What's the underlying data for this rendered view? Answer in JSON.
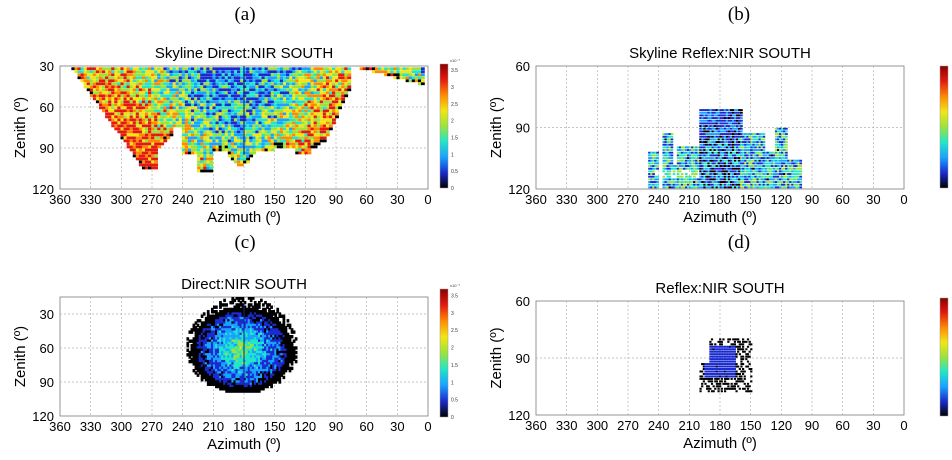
{
  "figure": {
    "panels": [
      "(a)",
      "(b)",
      "(c)",
      "(d)"
    ]
  },
  "colormap": {
    "name": "jet-with-black-low-end",
    "stops": [
      "#ffffff",
      "#000000",
      "#1a2bd0",
      "#18a3ff",
      "#21e6c9",
      "#9be33c",
      "#f1e615",
      "#ff8a00",
      "#e41a0f",
      "#8b0000"
    ],
    "a_ticks": [
      "x10⁻⁷",
      "3.5",
      "3",
      "2.5",
      "2",
      "1.5",
      "1",
      "0.5",
      "0"
    ],
    "c_ticks": [
      "x10⁻⁷",
      "3.5",
      "3",
      "2.5",
      "2",
      "1.5",
      "1",
      "0.5",
      "0"
    ]
  },
  "chart_data": [
    {
      "id": "a",
      "type": "heatmap",
      "title": "Skyline Direct:NIR SOUTH",
      "xlabel": "Azimuth (º)",
      "ylabel": "Zenith (º)",
      "xlim": [
        360,
        0
      ],
      "ylim": [
        30,
        120
      ],
      "xticks": [
        "360",
        "330",
        "300",
        "270",
        "240",
        "210",
        "180",
        "150",
        "120",
        "90",
        "60",
        "30",
        "0"
      ],
      "yticks": [
        "30",
        "60",
        "90",
        "120"
      ],
      "colorbar_range": [
        0,
        3.7
      ],
      "grid": true,
      "description_values": "intensity mostly 2–3.5 ×10⁻⁷ within the sky region above the horizon profile"
    },
    {
      "id": "b",
      "type": "heatmap",
      "title": "Skyline Reflex:NIR SOUTH",
      "xlabel": "Azimuth (º)",
      "ylabel": "Zenith (º)",
      "xlim": [
        360,
        0
      ],
      "ylim": [
        60,
        120
      ],
      "xticks": [
        "360",
        "330",
        "300",
        "270",
        "240",
        "210",
        "180",
        "150",
        "120",
        "90",
        "60",
        "30",
        "0"
      ],
      "yticks": [
        "60",
        "90",
        "120"
      ],
      "grid": true
    },
    {
      "id": "c",
      "type": "heatmap",
      "title": "Direct:NIR SOUTH",
      "xlabel": "Azimuth (º)",
      "ylabel": "Zenith (º)",
      "xlim": [
        360,
        0
      ],
      "ylim": [
        15,
        120
      ],
      "xticks": [
        "360",
        "330",
        "300",
        "270",
        "240",
        "210",
        "180",
        "150",
        "120",
        "90",
        "60",
        "30",
        "0"
      ],
      "yticks": [
        "30",
        "60",
        "90",
        "120"
      ],
      "colorbar_range": [
        0,
        3.7
      ],
      "grid": true
    },
    {
      "id": "d",
      "type": "heatmap",
      "title": "Reflex:NIR SOUTH",
      "xlabel": "Azimuth (º)",
      "ylabel": "Zenith (º)",
      "xlim": [
        360,
        0
      ],
      "ylim": [
        60,
        120
      ],
      "xticks": [
        "360",
        "330",
        "300",
        "270",
        "240",
        "210",
        "180",
        "150",
        "120",
        "90",
        "60",
        "30",
        "0"
      ],
      "yticks": [
        "60",
        "90",
        "120"
      ],
      "grid": true
    }
  ]
}
